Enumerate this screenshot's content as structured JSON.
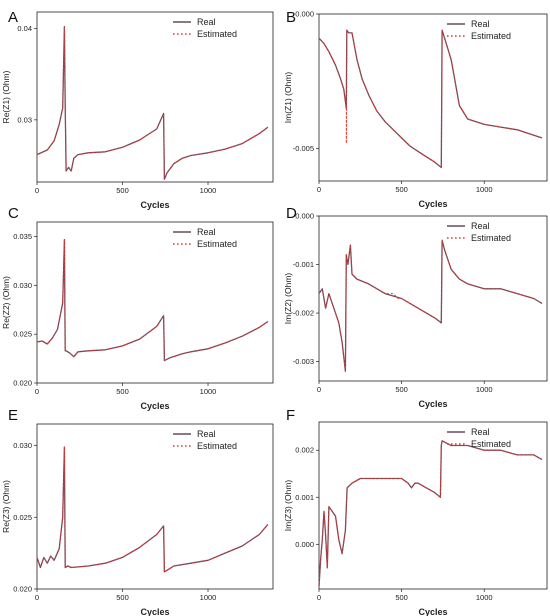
{
  "chart_data": [
    {
      "panel_label": "A",
      "type": "line",
      "xlabel": "Cycles",
      "ylabel": "Re(Z1) (Ohm)",
      "xlim": [
        0,
        1380
      ],
      "ylim": [
        0.0232,
        0.0418
      ],
      "xticks": [
        0,
        500,
        1000
      ],
      "yticks": [
        0.03,
        0.04
      ],
      "legend": "top-right",
      "series": [
        {
          "name": "Real",
          "color": "#6b4a5c",
          "style": "solid",
          "x": [
            0,
            60,
            100,
            130,
            150,
            160,
            165,
            170,
            185,
            200,
            215,
            240,
            300,
            400,
            500,
            600,
            700,
            740,
            745,
            760,
            800,
            850,
            900,
            1000,
            1100,
            1200,
            1300,
            1350
          ],
          "y": [
            0.0262,
            0.0267,
            0.0277,
            0.0295,
            0.0313,
            0.0402,
            0.0316,
            0.0244,
            0.0248,
            0.0244,
            0.0258,
            0.0262,
            0.0264,
            0.0265,
            0.027,
            0.0278,
            0.029,
            0.0307,
            0.0235,
            0.0242,
            0.0252,
            0.0258,
            0.0261,
            0.0264,
            0.0268,
            0.0274,
            0.0285,
            0.0292
          ]
        },
        {
          "name": "Estimated",
          "color": "#e8392e",
          "style": "dotted",
          "x": [
            0,
            60,
            100,
            130,
            150,
            160,
            165,
            170,
            185,
            200,
            215,
            240,
            300,
            400,
            500,
            600,
            700,
            740,
            745,
            760,
            800,
            850,
            900,
            1000,
            1100,
            1200,
            1300,
            1350
          ],
          "y": [
            0.0262,
            0.0267,
            0.0277,
            0.0295,
            0.0313,
            0.0402,
            0.0316,
            0.0244,
            0.0248,
            0.0244,
            0.0258,
            0.0262,
            0.0264,
            0.0265,
            0.027,
            0.0278,
            0.029,
            0.0307,
            0.0235,
            0.0242,
            0.0252,
            0.0258,
            0.0261,
            0.0264,
            0.0268,
            0.0274,
            0.0285,
            0.0292
          ]
        }
      ]
    },
    {
      "panel_label": "B",
      "type": "line",
      "xlabel": "Cycles",
      "ylabel": "Im(Z1) (Ohm)",
      "xlim": [
        0,
        1380
      ],
      "ylim": [
        -0.0062,
        0.0
      ],
      "xticks": [
        0,
        500,
        1000
      ],
      "yticks": [
        -0.005,
        0.0
      ],
      "ytick_labels": [
        "-0.005",
        "0.000"
      ],
      "legend": "top-right",
      "series": [
        {
          "name": "Real",
          "color": "#6b4a5c",
          "style": "solid",
          "x": [
            0,
            30,
            60,
            100,
            130,
            150,
            165,
            168,
            180,
            200,
            230,
            260,
            300,
            350,
            400,
            450,
            500,
            550,
            600,
            650,
            700,
            740,
            745,
            760,
            800,
            850,
            900,
            1000,
            1100,
            1200,
            1300,
            1350
          ],
          "y": [
            -0.0009,
            -0.0011,
            -0.0014,
            -0.0019,
            -0.0024,
            -0.0028,
            -0.0035,
            -0.0006,
            -0.0007,
            -0.0007,
            -0.0017,
            -0.0024,
            -0.003,
            -0.0036,
            -0.004,
            -0.0043,
            -0.0046,
            -0.0049,
            -0.0051,
            -0.0053,
            -0.0055,
            -0.0057,
            -0.0006,
            -0.0009,
            -0.0017,
            -0.0034,
            -0.0039,
            -0.0041,
            -0.0042,
            -0.0043,
            -0.0045,
            -0.0046
          ]
        },
        {
          "name": "Estimated",
          "color": "#e8392e",
          "style": "dotted",
          "x": [
            0,
            30,
            60,
            100,
            130,
            150,
            165,
            166,
            168,
            180,
            200,
            230,
            260,
            300,
            350,
            400,
            450,
            500,
            550,
            600,
            650,
            700,
            740,
            745,
            760,
            800,
            850,
            900,
            1000,
            1100,
            1200,
            1300,
            1350
          ],
          "y": [
            -0.0009,
            -0.0011,
            -0.0014,
            -0.0019,
            -0.0024,
            -0.0028,
            -0.0035,
            -0.0048,
            -0.0006,
            -0.0007,
            -0.0007,
            -0.0017,
            -0.0024,
            -0.003,
            -0.0036,
            -0.004,
            -0.0043,
            -0.0046,
            -0.0049,
            -0.0051,
            -0.0053,
            -0.0055,
            -0.0057,
            -0.0006,
            -0.0009,
            -0.0017,
            -0.0034,
            -0.0039,
            -0.0041,
            -0.0042,
            -0.0043,
            -0.0045,
            -0.0046
          ]
        }
      ]
    },
    {
      "panel_label": "C",
      "type": "line",
      "xlabel": "Cycles",
      "ylabel": "Re(Z2) (Ohm)",
      "xlim": [
        0,
        1380
      ],
      "ylim": [
        0.02,
        0.0365
      ],
      "xticks": [
        0,
        500,
        1000
      ],
      "yticks": [
        0.02,
        0.025,
        0.03,
        0.035
      ],
      "ytick_labels": [
        "0.020",
        "0.025",
        "0.030",
        "0.035"
      ],
      "legend": "top-right",
      "series": [
        {
          "name": "Real",
          "color": "#6b4a5c",
          "style": "solid",
          "x": [
            0,
            30,
            60,
            90,
            120,
            150,
            160,
            165,
            170,
            190,
            215,
            240,
            300,
            400,
            500,
            600,
            700,
            740,
            745,
            780,
            850,
            900,
            1000,
            1100,
            1200,
            1300,
            1350
          ],
          "y": [
            0.0242,
            0.0243,
            0.024,
            0.0246,
            0.0255,
            0.0282,
            0.0347,
            0.0233,
            0.0233,
            0.0231,
            0.0227,
            0.0232,
            0.0233,
            0.0234,
            0.0238,
            0.0245,
            0.0258,
            0.0269,
            0.0223,
            0.0226,
            0.023,
            0.0232,
            0.0235,
            0.0241,
            0.0248,
            0.0257,
            0.0263
          ]
        },
        {
          "name": "Estimated",
          "color": "#e8392e",
          "style": "dotted",
          "x": [
            0,
            30,
            60,
            90,
            120,
            150,
            160,
            165,
            170,
            190,
            215,
            240,
            300,
            400,
            500,
            600,
            700,
            740,
            745,
            780,
            850,
            900,
            1000,
            1100,
            1200,
            1300,
            1350
          ],
          "y": [
            0.0242,
            0.0243,
            0.024,
            0.0246,
            0.0255,
            0.0282,
            0.0347,
            0.0233,
            0.0233,
            0.0231,
            0.0227,
            0.0232,
            0.0233,
            0.0234,
            0.0238,
            0.0245,
            0.0258,
            0.0269,
            0.0223,
            0.0226,
            0.023,
            0.0232,
            0.0235,
            0.0241,
            0.0248,
            0.0257,
            0.0263
          ]
        }
      ]
    },
    {
      "panel_label": "D",
      "type": "line",
      "xlabel": "Cycles",
      "ylabel": "Im(Z2) (Ohm)",
      "xlim": [
        0,
        1380
      ],
      "ylim": [
        -0.0034,
        0.0
      ],
      "xticks": [
        0,
        500,
        1000
      ],
      "yticks": [
        -0.003,
        -0.002,
        -0.001,
        0.0
      ],
      "ytick_labels": [
        "-0.003",
        "-0.002",
        "-0.001",
        "0.000"
      ],
      "legend": "top-right",
      "series": [
        {
          "name": "Real",
          "color": "#6b4a5c",
          "style": "solid",
          "x": [
            0,
            20,
            40,
            60,
            80,
            100,
            120,
            140,
            160,
            165,
            175,
            190,
            200,
            230,
            300,
            400,
            500,
            600,
            700,
            740,
            745,
            760,
            800,
            850,
            900,
            1000,
            1100,
            1200,
            1300,
            1350
          ],
          "y": [
            -0.0016,
            -0.0015,
            -0.0019,
            -0.0016,
            -0.0018,
            -0.002,
            -0.0022,
            -0.0026,
            -0.0032,
            -0.0008,
            -0.001,
            -0.0006,
            -0.0012,
            -0.0013,
            -0.0014,
            -0.0016,
            -0.0017,
            -0.0019,
            -0.0021,
            -0.0022,
            -0.0005,
            -0.0007,
            -0.0011,
            -0.0013,
            -0.0014,
            -0.0015,
            -0.0015,
            -0.0016,
            -0.0017,
            -0.0018
          ]
        },
        {
          "name": "Estimated",
          "color": "#e8392e",
          "style": "dotted",
          "x": [
            0,
            20,
            40,
            60,
            80,
            100,
            120,
            140,
            160,
            165,
            175,
            190,
            200,
            230,
            300,
            400,
            450,
            480,
            500,
            600,
            700,
            740,
            745,
            760,
            800,
            850,
            900,
            1000,
            1100,
            1200,
            1300,
            1350
          ],
          "y": [
            -0.0016,
            -0.0015,
            -0.0019,
            -0.0016,
            -0.0018,
            -0.002,
            -0.0022,
            -0.0026,
            -0.0032,
            -0.0008,
            -0.001,
            -0.0006,
            -0.0012,
            -0.0013,
            -0.0014,
            -0.0016,
            -0.0016,
            -0.0017,
            -0.0017,
            -0.0019,
            -0.0021,
            -0.0022,
            -0.0005,
            -0.0007,
            -0.0011,
            -0.0013,
            -0.0014,
            -0.0015,
            -0.0015,
            -0.0016,
            -0.0017,
            -0.0018
          ]
        }
      ]
    },
    {
      "panel_label": "E",
      "type": "line",
      "xlabel": "Cycles",
      "ylabel": "Re(Z3) (Ohm)",
      "xlim": [
        0,
        1380
      ],
      "ylim": [
        0.02,
        0.0315
      ],
      "xticks": [
        0,
        500,
        1000
      ],
      "yticks": [
        0.02,
        0.025,
        0.03
      ],
      "ytick_labels": [
        "0.020",
        "0.025",
        "0.030"
      ],
      "legend": "top-right",
      "series": [
        {
          "name": "Real",
          "color": "#6b4a5c",
          "style": "solid",
          "x": [
            0,
            20,
            40,
            60,
            80,
            100,
            130,
            150,
            160,
            165,
            180,
            200,
            300,
            400,
            500,
            600,
            700,
            740,
            745,
            760,
            800,
            900,
            1000,
            1100,
            1200,
            1300,
            1350
          ],
          "y": [
            0.0222,
            0.0215,
            0.0222,
            0.0218,
            0.0223,
            0.022,
            0.0228,
            0.025,
            0.0299,
            0.0215,
            0.0216,
            0.0215,
            0.0216,
            0.0218,
            0.0222,
            0.0229,
            0.0238,
            0.0244,
            0.0212,
            0.0213,
            0.0216,
            0.0218,
            0.022,
            0.0225,
            0.023,
            0.0238,
            0.0245
          ]
        },
        {
          "name": "Estimated",
          "color": "#e8392e",
          "style": "dotted",
          "x": [
            0,
            20,
            40,
            60,
            80,
            100,
            130,
            150,
            160,
            165,
            180,
            200,
            300,
            400,
            500,
            600,
            700,
            740,
            745,
            760,
            800,
            900,
            1000,
            1100,
            1200,
            1300,
            1350
          ],
          "y": [
            0.0222,
            0.0215,
            0.0222,
            0.0218,
            0.0223,
            0.022,
            0.0228,
            0.025,
            0.0299,
            0.0215,
            0.0216,
            0.0215,
            0.0216,
            0.0218,
            0.0222,
            0.0229,
            0.0238,
            0.0244,
            0.0212,
            0.0213,
            0.0216,
            0.0218,
            0.022,
            0.0225,
            0.023,
            0.0238,
            0.0245
          ]
        }
      ]
    },
    {
      "panel_label": "F",
      "type": "line",
      "xlabel": "Cycles",
      "ylabel": "Im(Z3) (Ohm)",
      "xlim": [
        0,
        1380
      ],
      "ylim": [
        -0.00095,
        0.0026
      ],
      "xticks": [
        0,
        500,
        1000
      ],
      "yticks": [
        0.0,
        0.001,
        0.002
      ],
      "ytick_labels": [
        "0.000",
        "0.001",
        "0.002"
      ],
      "legend": "top-right",
      "series": [
        {
          "name": "Real",
          "color": "#6b4a5c",
          "style": "solid",
          "x": [
            0,
            10,
            20,
            30,
            40,
            50,
            60,
            80,
            100,
            120,
            140,
            160,
            170,
            200,
            250,
            300,
            400,
            500,
            540,
            560,
            580,
            600,
            650,
            700,
            735,
            740,
            745,
            800,
            900,
            1000,
            1100,
            1200,
            1300,
            1350
          ],
          "y": [
            -0.0009,
            -0.0003,
            0.0001,
            0.0007,
            0.0002,
            -0.0005,
            0.0008,
            0.0007,
            0.0006,
            0.0001,
            -0.0002,
            0.0003,
            0.0012,
            0.0013,
            0.0014,
            0.0014,
            0.0014,
            0.0014,
            0.0013,
            0.0012,
            0.0013,
            0.0013,
            0.0012,
            0.0011,
            0.001,
            0.0021,
            0.0022,
            0.0021,
            0.0021,
            0.002,
            0.002,
            0.0019,
            0.0019,
            0.0018
          ]
        },
        {
          "name": "Estimated",
          "color": "#e8392e",
          "style": "dotted",
          "x": [
            0,
            10,
            20,
            30,
            40,
            50,
            60,
            80,
            100,
            120,
            140,
            160,
            170,
            200,
            250,
            300,
            400,
            500,
            540,
            560,
            580,
            600,
            650,
            700,
            735,
            740,
            745,
            800,
            900,
            1000,
            1100,
            1200,
            1300,
            1350
          ],
          "y": [
            -0.0009,
            -0.0003,
            0.0001,
            0.0007,
            0.0002,
            -0.0005,
            0.0008,
            0.0007,
            0.0006,
            0.0001,
            -0.0002,
            0.0003,
            0.0012,
            0.0013,
            0.0014,
            0.0014,
            0.0014,
            0.0014,
            0.0013,
            0.0012,
            0.0013,
            0.0013,
            0.0012,
            0.0011,
            0.001,
            0.0021,
            0.0022,
            0.0021,
            0.0021,
            0.002,
            0.002,
            0.0019,
            0.0019,
            0.0018
          ]
        }
      ]
    }
  ]
}
